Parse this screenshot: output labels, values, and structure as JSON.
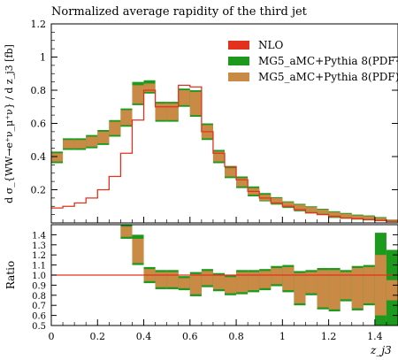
{
  "chart_data": [
    {
      "type": "line",
      "title": "Normalized average rapidity of the third jet",
      "ylabel": "d σ_{WW→e⁺ν_μ⁺ν} / d z_j3 [fb]",
      "xlim": [
        0,
        1.5
      ],
      "ylim": [
        0,
        1.2
      ],
      "yticks": [
        "0.2",
        "0.4",
        "0.6",
        "0.8",
        "1",
        "1.2"
      ],
      "legend_position": "top-right",
      "series": [
        {
          "name": "NLO",
          "color": "#e2321e",
          "edges": [
            0,
            0.05,
            0.1,
            0.15,
            0.2,
            0.25,
            0.3,
            0.35,
            0.4,
            0.45,
            0.5,
            0.55,
            0.6,
            0.65,
            0.7,
            0.75,
            0.8,
            0.85,
            0.9,
            0.95,
            1.0,
            1.05,
            1.1,
            1.15,
            1.2,
            1.25,
            1.3,
            1.35,
            1.4,
            1.45,
            1.5
          ],
          "values": [
            0.09,
            0.1,
            0.12,
            0.15,
            0.2,
            0.28,
            0.42,
            0.62,
            0.8,
            0.7,
            0.7,
            0.83,
            0.82,
            0.55,
            0.42,
            0.34,
            0.26,
            0.19,
            0.15,
            0.12,
            0.1,
            0.08,
            0.06,
            0.05,
            0.04,
            0.03,
            0.025,
            0.02,
            0.015,
            0.01
          ]
        },
        {
          "name": "MG5_aMC+Pythia 8(PDF+",
          "color": "#1d9a1d",
          "lo": [
            0.36,
            0.44,
            0.44,
            0.45,
            0.47,
            0.52,
            0.58,
            0.71,
            0.78,
            0.61,
            0.61,
            0.7,
            0.64,
            0.5,
            0.36,
            0.27,
            0.21,
            0.16,
            0.13,
            0.11,
            0.09,
            0.07,
            0.06,
            0.05,
            0.03,
            0.025,
            0.02,
            0.015,
            0.01,
            0.005
          ],
          "hi": [
            0.43,
            0.51,
            0.51,
            0.53,
            0.56,
            0.62,
            0.69,
            0.85,
            0.86,
            0.73,
            0.73,
            0.81,
            0.8,
            0.6,
            0.44,
            0.34,
            0.28,
            0.22,
            0.18,
            0.155,
            0.13,
            0.115,
            0.1,
            0.085,
            0.07,
            0.06,
            0.05,
            0.045,
            0.035,
            0.02
          ]
        },
        {
          "name": "MG5_aMC+Pythia 8(PDF)",
          "color": "#c98a45",
          "lo": [
            0.37,
            0.45,
            0.45,
            0.46,
            0.48,
            0.53,
            0.59,
            0.72,
            0.79,
            0.62,
            0.62,
            0.71,
            0.65,
            0.51,
            0.37,
            0.28,
            0.22,
            0.17,
            0.135,
            0.115,
            0.095,
            0.075,
            0.065,
            0.055,
            0.035,
            0.03,
            0.025,
            0.018,
            0.012,
            0.007
          ],
          "hi": [
            0.42,
            0.5,
            0.5,
            0.52,
            0.55,
            0.61,
            0.68,
            0.83,
            0.84,
            0.72,
            0.72,
            0.8,
            0.79,
            0.59,
            0.43,
            0.33,
            0.27,
            0.21,
            0.17,
            0.15,
            0.125,
            0.11,
            0.095,
            0.08,
            0.065,
            0.055,
            0.045,
            0.04,
            0.03,
            0.018
          ]
        }
      ]
    },
    {
      "type": "line",
      "ylabel": "Ratio",
      "xlabel": "z_j3",
      "xlim": [
        0,
        1.5
      ],
      "ylim": [
        0.5,
        1.5
      ],
      "xticks": [
        "0",
        "0.2",
        "0.4",
        "0.6",
        "0.8",
        "1",
        "1.2",
        "1.4"
      ],
      "yticks": [
        "0.5",
        "0.6",
        "0.7",
        "0.8",
        "0.9",
        "1.0",
        "1.1",
        "1.2",
        "1.3",
        "1.4"
      ],
      "reference_line": 1.0,
      "green_lo": [
        1.5,
        1.5,
        1.5,
        1.5,
        1.5,
        1.5,
        1.36,
        1.1,
        0.92,
        0.86,
        0.86,
        0.85,
        0.79,
        0.88,
        0.84,
        0.8,
        0.81,
        0.83,
        0.85,
        0.89,
        0.83,
        0.7,
        0.8,
        0.66,
        0.64,
        0.74,
        0.65,
        0.7,
        0.5,
        0.5
      ],
      "green_hi": [
        1.5,
        1.5,
        1.5,
        1.5,
        1.5,
        1.5,
        1.5,
        1.4,
        1.08,
        1.05,
        1.05,
        0.99,
        1.03,
        1.06,
        1.02,
        1.0,
        1.05,
        1.05,
        1.06,
        1.09,
        1.1,
        1.04,
        1.05,
        1.07,
        1.07,
        1.05,
        1.09,
        1.1,
        1.42,
        1.25
      ],
      "brown_lo": [
        1.5,
        1.5,
        1.5,
        1.5,
        1.5,
        1.5,
        1.38,
        1.12,
        0.94,
        0.88,
        0.88,
        0.87,
        0.81,
        0.9,
        0.86,
        0.82,
        0.83,
        0.85,
        0.87,
        0.91,
        0.85,
        0.72,
        0.82,
        0.68,
        0.66,
        0.76,
        0.67,
        0.72,
        0.6,
        0.75
      ],
      "brown_hi": [
        1.5,
        1.5,
        1.5,
        1.5,
        1.5,
        1.5,
        1.48,
        1.36,
        1.06,
        1.03,
        1.03,
        0.97,
        1.01,
        1.04,
        1.0,
        0.98,
        1.03,
        1.03,
        1.04,
        1.07,
        1.08,
        1.02,
        1.03,
        1.05,
        1.05,
        1.03,
        1.07,
        1.08,
        1.2,
        0.95
      ]
    }
  ]
}
